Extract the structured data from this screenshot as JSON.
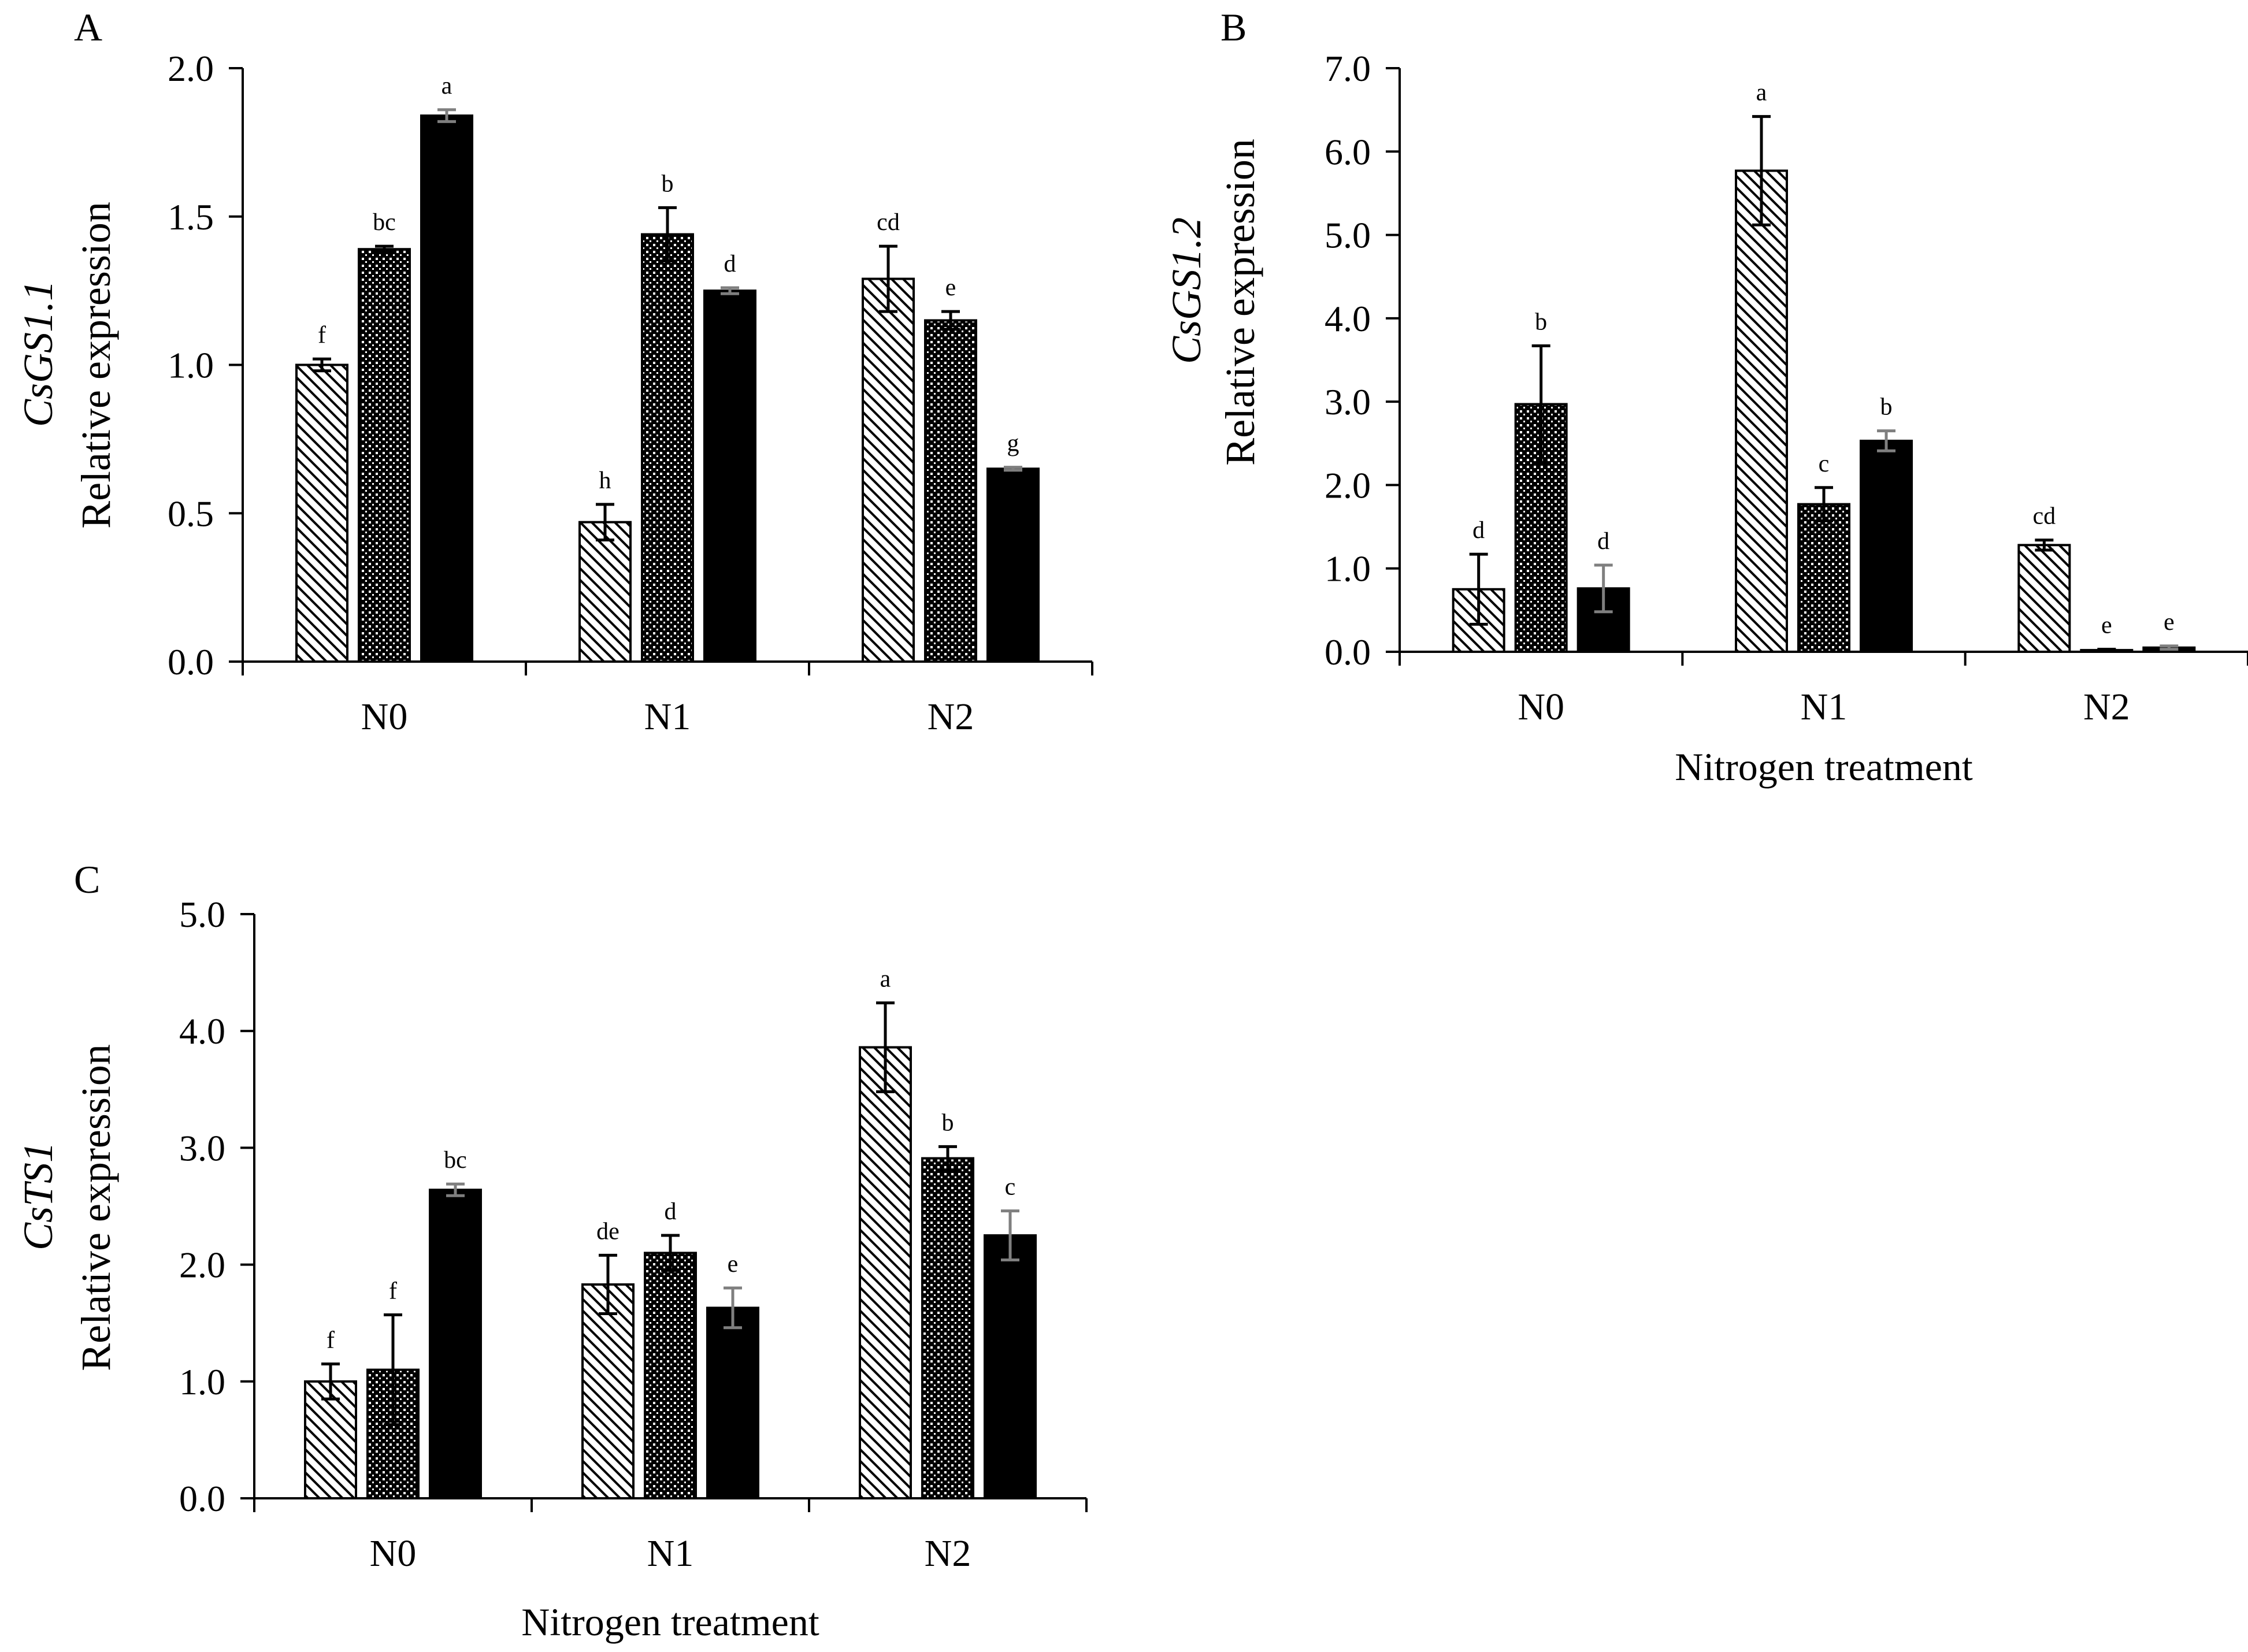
{
  "figure": {
    "series": [
      {
        "name": "series-1",
        "pattern": "diagonal-hatch"
      },
      {
        "name": "series-2",
        "pattern": "dotted-crosshatch"
      },
      {
        "name": "series-3",
        "pattern": "solid-black"
      }
    ],
    "colors": {
      "bar_fill": "#000000",
      "axis": "#000000",
      "error_bar_black": "#000000",
      "error_bar_gray": "#7f7f7f"
    }
  },
  "chart_data": [
    {
      "type": "bar",
      "panel": "A",
      "gene": "CsGS1.1",
      "ylabel": "Relative expression",
      "xlabel": "",
      "categories": [
        "N0",
        "N1",
        "N2"
      ],
      "ylim": [
        0,
        2.0
      ],
      "yticks": [
        0,
        0.5,
        1.0,
        1.5,
        2.0
      ],
      "ytick_labels": [
        "0.0",
        "0.5",
        "1.0",
        "1.5",
        "2.0"
      ],
      "series": [
        {
          "name": "series-1",
          "values": [
            1.0,
            0.47,
            1.29
          ],
          "errors": [
            0.02,
            0.06,
            0.11
          ],
          "labels": [
            "f",
            "h",
            "cd"
          ]
        },
        {
          "name": "series-2",
          "values": [
            1.39,
            1.44,
            1.15
          ],
          "errors": [
            0.01,
            0.09,
            0.03
          ],
          "labels": [
            "bc",
            "b",
            "e"
          ]
        },
        {
          "name": "series-3",
          "values": [
            1.84,
            1.25,
            0.65
          ],
          "errors": [
            0.02,
            0.01,
            0.005
          ],
          "labels": [
            "a",
            "d",
            "g"
          ]
        }
      ]
    },
    {
      "type": "bar",
      "panel": "B",
      "gene": "CsGS1.2",
      "ylabel": "Relative expression",
      "xlabel": "Nitrogen treatment",
      "categories": [
        "N0",
        "N1",
        "N2"
      ],
      "ylim": [
        0,
        7.0
      ],
      "yticks": [
        0,
        1,
        2,
        3,
        4,
        5,
        6,
        7
      ],
      "ytick_labels": [
        "0.0",
        "1.0",
        "2.0",
        "3.0",
        "4.0",
        "5.0",
        "6.0",
        "7.0"
      ],
      "series": [
        {
          "name": "series-1",
          "values": [
            0.75,
            5.77,
            1.28
          ],
          "errors": [
            0.42,
            0.65,
            0.06
          ],
          "labels": [
            "d",
            "a",
            "cd"
          ]
        },
        {
          "name": "series-2",
          "values": [
            2.97,
            1.77,
            0.02
          ],
          "errors": [
            0.7,
            0.2,
            0.01
          ],
          "labels": [
            "b",
            "c",
            "e"
          ]
        },
        {
          "name": "series-3",
          "values": [
            0.76,
            2.53,
            0.05
          ],
          "errors": [
            0.28,
            0.12,
            0.02
          ],
          "labels": [
            "d",
            "b",
            "e"
          ]
        }
      ]
    },
    {
      "type": "bar",
      "panel": "C",
      "gene": "CsTS1",
      "ylabel": "Relative expression",
      "xlabel": "Nitrogen treatment",
      "categories": [
        "N0",
        "N1",
        "N2"
      ],
      "ylim": [
        0,
        5.0
      ],
      "yticks": [
        0,
        1,
        2,
        3,
        4,
        5
      ],
      "ytick_labels": [
        "0.0",
        "1.0",
        "2.0",
        "3.0",
        "4.0",
        "5.0"
      ],
      "series": [
        {
          "name": "series-1",
          "values": [
            1.0,
            1.83,
            3.86
          ],
          "errors": [
            0.15,
            0.25,
            0.38
          ],
          "labels": [
            "f",
            "de",
            "a"
          ]
        },
        {
          "name": "series-2",
          "values": [
            1.1,
            2.1,
            2.91
          ],
          "errors": [
            0.47,
            0.15,
            0.1
          ],
          "labels": [
            "f",
            "d",
            "b"
          ]
        },
        {
          "name": "series-3",
          "values": [
            2.64,
            1.63,
            2.25
          ],
          "errors": [
            0.05,
            0.17,
            0.21
          ],
          "labels": [
            "bc",
            "e",
            "c"
          ]
        }
      ]
    }
  ]
}
